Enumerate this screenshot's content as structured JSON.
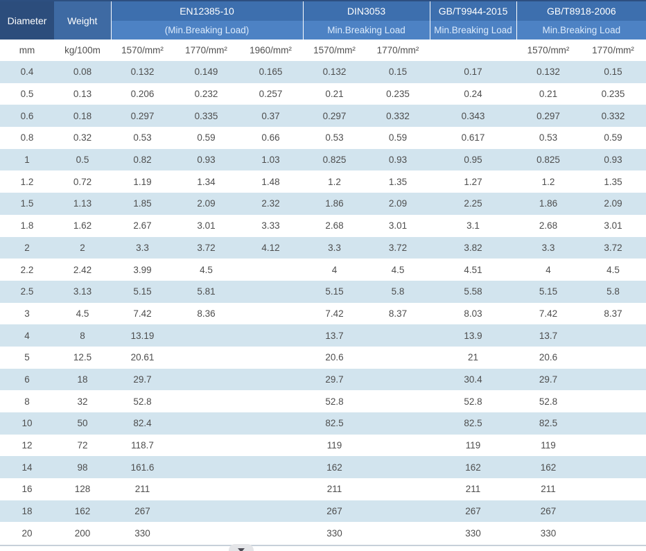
{
  "colors": {
    "top_border": "#2d4f80",
    "diameter_bg": "#2c4d7c",
    "weight_bg": "#3e6aa3",
    "band1_bg": "#3d6fae",
    "band2_bg": "#4d82c4",
    "header_text": "#ffffff",
    "band2_text": "#dcebfc",
    "stripe_bg": "#d2e4ee",
    "body_text": "#4d4d4d",
    "bottom_line": "#c6d0d9"
  },
  "table": {
    "groups": {
      "diameter": "Diameter",
      "weight": "Weight",
      "en": {
        "line1": "EN12385-10",
        "line2": "(Min.Breaking Load)"
      },
      "din": {
        "line1": "DIN3053",
        "line2": "Min.Breaking Load"
      },
      "gb9944": {
        "line1": "GB/T9944-2015",
        "line2": "Min.Breaking Load"
      },
      "gb8918": {
        "line1": "GB/T8918-2006",
        "line2": "Min.Breaking Load"
      }
    },
    "units": [
      "mm",
      "kg/100m",
      "1570/mm²",
      "1770/mm²",
      "1960/mm²",
      "1570/mm²",
      "1770/mm²",
      "",
      "1570/mm²",
      "1770/mm²"
    ],
    "rows": [
      [
        "0.4",
        "0.08",
        "0.132",
        "0.149",
        "0.165",
        "0.132",
        "0.15",
        "0.17",
        "0.132",
        "0.15"
      ],
      [
        "0.5",
        "0.13",
        "0.206",
        "0.232",
        "0.257",
        "0.21",
        "0.235",
        "0.24",
        "0.21",
        "0.235"
      ],
      [
        "0.6",
        "0.18",
        "0.297",
        "0.335",
        "0.37",
        "0.297",
        "0.332",
        "0.343",
        "0.297",
        "0.332"
      ],
      [
        "0.8",
        "0.32",
        "0.53",
        "0.59",
        "0.66",
        "0.53",
        "0.59",
        "0.617",
        "0.53",
        "0.59"
      ],
      [
        "1",
        "0.5",
        "0.82",
        "0.93",
        "1.03",
        "0.825",
        "0.93",
        "0.95",
        "0.825",
        "0.93"
      ],
      [
        "1.2",
        "0.72",
        "1.19",
        "1.34",
        "1.48",
        "1.2",
        "1.35",
        "1.27",
        "1.2",
        "1.35"
      ],
      [
        "1.5",
        "1.13",
        "1.85",
        "2.09",
        "2.32",
        "1.86",
        "2.09",
        "2.25",
        "1.86",
        "2.09"
      ],
      [
        "1.8",
        "1.62",
        "2.67",
        "3.01",
        "3.33",
        "2.68",
        "3.01",
        "3.1",
        "2.68",
        "3.01"
      ],
      [
        "2",
        "2",
        "3.3",
        "3.72",
        "4.12",
        "3.3",
        "3.72",
        "3.82",
        "3.3",
        "3.72"
      ],
      [
        "2.2",
        "2.42",
        "3.99",
        "4.5",
        "",
        "4",
        "4.5",
        "4.51",
        "4",
        "4.5"
      ],
      [
        "2.5",
        "3.13",
        "5.15",
        "5.81",
        "",
        "5.15",
        "5.8",
        "5.58",
        "5.15",
        "5.8"
      ],
      [
        "3",
        "4.5",
        "7.42",
        "8.36",
        "",
        "7.42",
        "8.37",
        "8.03",
        "7.42",
        "8.37"
      ],
      [
        "4",
        "8",
        "13.19",
        "",
        "",
        "13.7",
        "",
        "13.9",
        "13.7",
        ""
      ],
      [
        "5",
        "12.5",
        "20.61",
        "",
        "",
        "20.6",
        "",
        "21",
        "20.6",
        ""
      ],
      [
        "6",
        "18",
        "29.7",
        "",
        "",
        "29.7",
        "",
        "30.4",
        "29.7",
        ""
      ],
      [
        "8",
        "32",
        "52.8",
        "",
        "",
        "52.8",
        "",
        "52.8",
        "52.8",
        ""
      ],
      [
        "10",
        "50",
        "82.4",
        "",
        "",
        "82.5",
        "",
        "82.5",
        "82.5",
        ""
      ],
      [
        "12",
        "72",
        "118.7",
        "",
        "",
        "119",
        "",
        "119",
        "119",
        ""
      ],
      [
        "14",
        "98",
        "161.6",
        "",
        "",
        "162",
        "",
        "162",
        "162",
        ""
      ],
      [
        "16",
        "128",
        "211",
        "",
        "",
        "211",
        "",
        "211",
        "211",
        ""
      ],
      [
        "18",
        "162",
        "267",
        "",
        "",
        "267",
        "",
        "267",
        "267",
        ""
      ],
      [
        "20",
        "200",
        "330",
        "",
        "",
        "330",
        "",
        "330",
        "330",
        ""
      ]
    ]
  }
}
